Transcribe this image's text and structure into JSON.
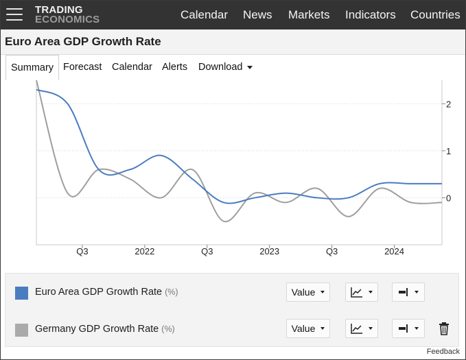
{
  "header": {
    "logo_line1": "TRADING",
    "logo_line2": "ECONOMICS",
    "nav": [
      "Calendar",
      "News",
      "Markets",
      "Indicators",
      "Countries"
    ]
  },
  "page": {
    "title": "Euro Area GDP Growth Rate"
  },
  "tabs": [
    {
      "label": "Summary",
      "active": true
    },
    {
      "label": "Forecast"
    },
    {
      "label": "Calendar"
    },
    {
      "label": "Alerts"
    },
    {
      "label": "Download",
      "dropdown": true
    }
  ],
  "chart_data": {
    "type": "line",
    "x_ticks": [
      "Q3",
      "2022",
      "Q3",
      "2023",
      "Q3",
      "2024"
    ],
    "y_ticks": [
      "2",
      "1",
      "0"
    ],
    "ylim": [
      -1,
      2.5
    ],
    "y_axis_side": "right",
    "grid": "horizontal",
    "x": [
      "2021-Q1",
      "2021-Q2",
      "2021-Q3",
      "2021-Q4",
      "2022-Q1",
      "2022-Q2",
      "2022-Q3",
      "2022-Q4",
      "2023-Q1",
      "2023-Q2",
      "2023-Q3",
      "2023-Q4",
      "2024-Q1",
      "2024-Q2"
    ],
    "series": [
      {
        "name": "Euro Area GDP Growth Rate",
        "color": "#4a7cc0",
        "values": [
          2.3,
          2.0,
          0.6,
          0.6,
          0.9,
          0.4,
          -0.1,
          0.0,
          0.1,
          0.0,
          0.0,
          0.3,
          0.3,
          0.3
        ]
      },
      {
        "name": "Germany GDP Growth Rate",
        "color": "#9e9e9e",
        "values": [
          2.5,
          0.1,
          0.6,
          0.4,
          0.0,
          0.6,
          -0.5,
          0.1,
          -0.1,
          0.2,
          -0.4,
          0.2,
          -0.1,
          -0.1
        ]
      }
    ]
  },
  "legend": {
    "rows": [
      {
        "label": "Euro Area GDP Growth Rate",
        "unit": "(%)",
        "color": "#4a7cc0",
        "value_button": "Value"
      },
      {
        "label": "Germany GDP Growth Rate",
        "unit": "(%)",
        "color": "#aaaaaa",
        "value_button": "Value",
        "removable": true
      }
    ]
  },
  "footer": {
    "feedback": "Feedback"
  }
}
